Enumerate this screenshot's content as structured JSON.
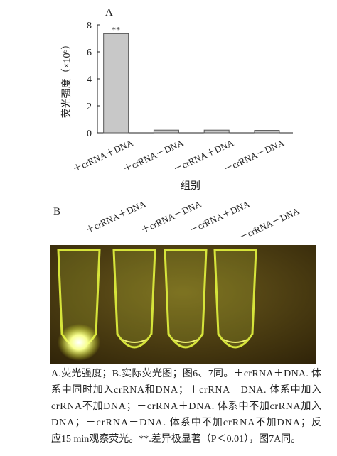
{
  "chart_data": {
    "type": "bar",
    "panel_label": "A",
    "y_label": "荧光强度（×10⁶）",
    "x_label": "组别",
    "categories": [
      "＋crRNA＋DNA",
      "＋crRNA－DNA",
      "－crRNA＋DNA",
      "－crRNA－DNA"
    ],
    "values": [
      7.35,
      0.2,
      0.2,
      0.18
    ],
    "color": "#c8c8c8",
    "ylim": [
      0,
      8
    ],
    "yticks": [
      0,
      2,
      4,
      6,
      8
    ],
    "annotation": "**"
  },
  "panel_b": {
    "label": "B",
    "labels": [
      "＋crRNA＋DNA",
      "＋crRNA－DNA",
      "－crRNA＋DNA",
      "－crRNA－DNA"
    ]
  },
  "caption": [
    "A.荧光强度；B.实际荧光图；图6、7同。＋crRNA＋DNA. 体",
    "系中同时加入crRNA和DNA；＋crRNA－DNA. 体系中加入",
    "crRNA不加DNA；－crRNA＋DNA. 体系中不加crRNA加入",
    "DNA；－crRNA－DNA. 体系中不加crRNA不加DNA；反",
    "应15 min观察荧光。**.差异极显著（P＜0.01），图7A同。"
  ]
}
